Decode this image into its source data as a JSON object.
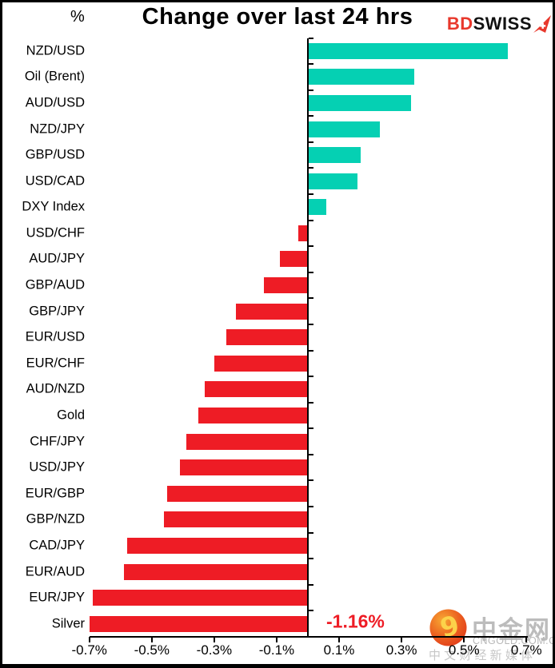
{
  "header": {
    "percent_label": "%",
    "title": "Change over last 24 hrs",
    "logo": {
      "bd": "BD",
      "swiss": "SWISS",
      "icon": "red-arrow-swiss-cross-icon"
    }
  },
  "chart_data": {
    "type": "bar",
    "orientation": "horizontal",
    "title": "Change over last 24 hrs",
    "unit": "%",
    "categories": [
      "NZD/USD",
      "Oil (Brent)",
      "AUD/USD",
      "NZD/JPY",
      "GBP/USD",
      "USD/CAD",
      "DXY Index",
      "USD/CHF",
      "AUD/JPY",
      "GBP/AUD",
      "GBP/JPY",
      "EUR/USD",
      "EUR/CHF",
      "AUD/NZD",
      "Gold",
      "CHF/JPY",
      "USD/JPY",
      "EUR/GBP",
      "GBP/NZD",
      "CAD/JPY",
      "EUR/AUD",
      "EUR/JPY",
      "Silver"
    ],
    "values": [
      0.64,
      0.34,
      0.33,
      0.23,
      0.17,
      0.16,
      0.06,
      -0.03,
      -0.09,
      -0.14,
      -0.23,
      -0.26,
      -0.3,
      -0.33,
      -0.35,
      -0.39,
      -0.41,
      -0.45,
      -0.46,
      -0.58,
      -0.59,
      -0.69,
      -1.16
    ],
    "xlim": [
      -0.7,
      0.7
    ],
    "x_tick_labels": [
      "-0.7%",
      "-0.5%",
      "-0.3%",
      "-0.1%",
      "0.1%",
      "0.3%",
      "0.5%",
      "0.7%"
    ],
    "x_tick_values": [
      -0.7,
      -0.5,
      -0.3,
      -0.1,
      0.1,
      0.3,
      0.5,
      0.7
    ],
    "grid": false,
    "legend": false,
    "positive_color": "#05d0b3",
    "negative_color": "#ee1c25",
    "bars_clipped_at_xlim": [
      "Silver"
    ],
    "annotation": {
      "text": "-1.16%",
      "category": "Silver",
      "color": "#ee1c25"
    }
  },
  "watermark": {
    "site_name": "中金网",
    "site_url": "CNGOLD.COM.CN",
    "tagline": "中 文 财 经 新 媒 体",
    "logo_icon": "cngold-orange-swirl-icon"
  }
}
